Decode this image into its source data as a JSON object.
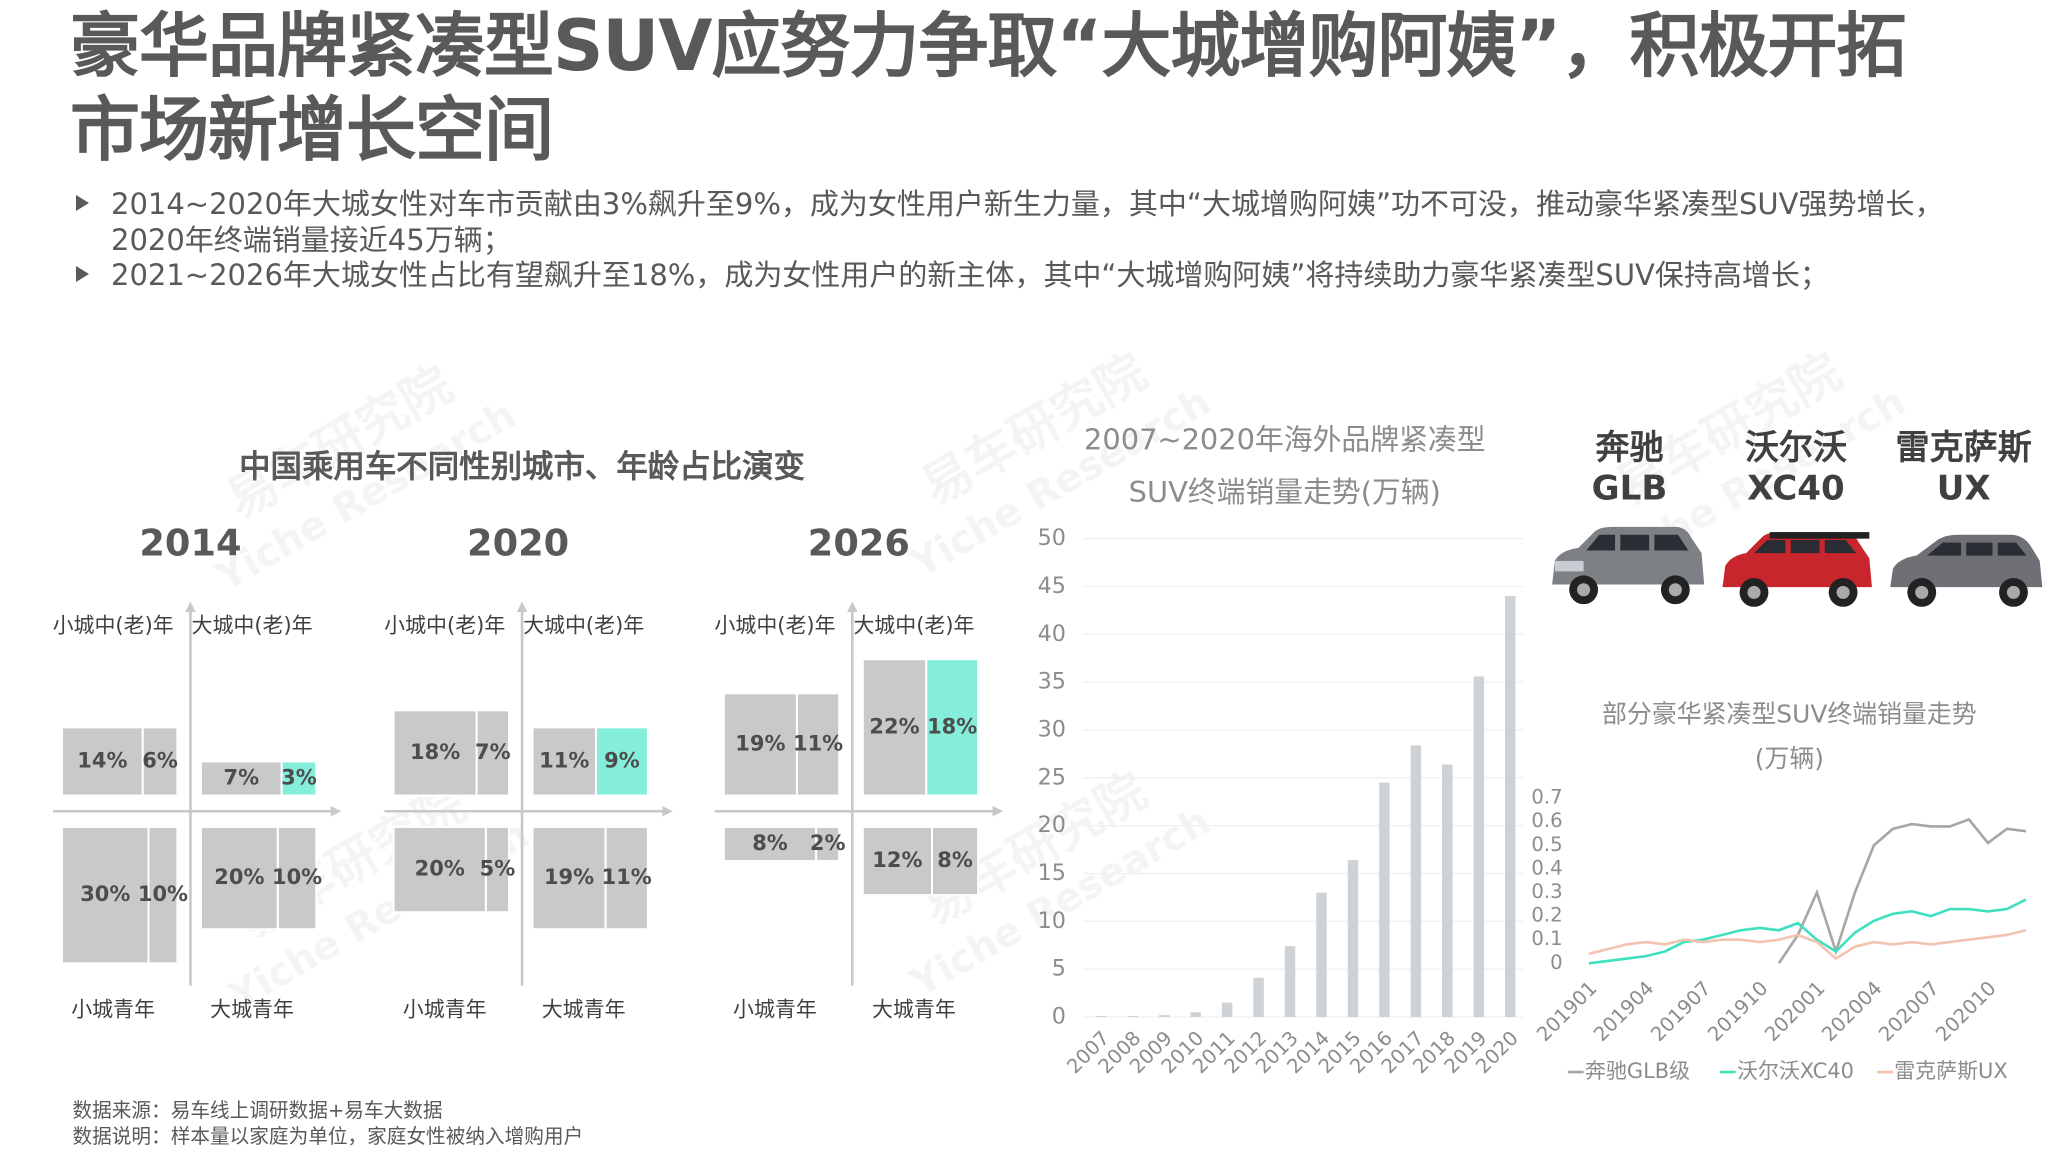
{
  "title": "豪华品牌紧凑型SUV应努力争取“大城增购阿姨”，积极开拓市场新增长空间",
  "bullets": [
    "2014~2020年大城女性对车市贡献由3%飙升至9%，成为女性用户新生力量，其中“大城增购阿姨”功不可没，推动豪华紧凑型SUV强势增长，2020年终端销量接近45万辆；",
    "2021~2026年大城女性占比有望飙升至18%，成为女性用户的新主体，其中“大城增购阿姨”将持续助力豪华紧凑型SUV保持高增长；"
  ],
  "watermark": {
    "cn": "易车研究院",
    "en": "Yiche Research"
  },
  "cars": [
    {
      "brand": "奔驰",
      "model": "GLB"
    },
    {
      "brand": "沃尔沃",
      "model": "XC40"
    },
    {
      "brand": "雷克萨斯",
      "model": "UX"
    }
  ],
  "notes": [
    "数据来源：易车线上调研数据+易车大数据",
    "数据说明：样本量以家庭为单位，家庭女性被纳入增购用户"
  ],
  "chart_data": [
    {
      "type": "quadrant",
      "title": "中国乘用车不同性别城市、年龄占比演变",
      "panels": [
        {
          "label": "2014",
          "quadrants": [
            {
              "name": "小城中(老)年",
              "values": [
                14,
                6
              ],
              "value_labels": [
                "14%",
                "6%"
              ],
              "colors": [
                "#c9c9c9",
                "#c9c9c9"
              ]
            },
            {
              "name": "大城中(老)年",
              "values": [
                7,
                3
              ],
              "value_labels": [
                "7%",
                "3%"
              ],
              "colors": [
                "#c9c9c9",
                "#84eedb"
              ]
            },
            {
              "name": "小城青年",
              "values": [
                30,
                10
              ],
              "value_labels": [
                "30%",
                "10%"
              ],
              "colors": [
                "#c9c9c9",
                "#c9c9c9"
              ]
            },
            {
              "name": "大城青年",
              "values": [
                20,
                10
              ],
              "value_labels": [
                "20%",
                "10%"
              ],
              "colors": [
                "#c9c9c9",
                "#c9c9c9"
              ]
            }
          ]
        },
        {
          "label": "2020",
          "quadrants": [
            {
              "name": "小城中(老)年",
              "values": [
                18,
                7
              ],
              "value_labels": [
                "18%",
                "7%"
              ],
              "colors": [
                "#c9c9c9",
                "#c9c9c9"
              ]
            },
            {
              "name": "大城中(老)年",
              "values": [
                11,
                9
              ],
              "value_labels": [
                "11%",
                "9%"
              ],
              "colors": [
                "#c9c9c9",
                "#84eedb"
              ]
            },
            {
              "name": "小城青年",
              "values": [
                20,
                5
              ],
              "value_labels": [
                "20%",
                "5%"
              ],
              "colors": [
                "#c9c9c9",
                "#c9c9c9"
              ]
            },
            {
              "name": "大城青年",
              "values": [
                19,
                11
              ],
              "value_labels": [
                "19%",
                "11%"
              ],
              "colors": [
                "#c9c9c9",
                "#c9c9c9"
              ]
            }
          ]
        },
        {
          "label": "2026",
          "quadrants": [
            {
              "name": "小城中(老)年",
              "values": [
                19,
                11
              ],
              "value_labels": [
                "19%",
                "11%"
              ],
              "colors": [
                "#c9c9c9",
                "#c9c9c9"
              ]
            },
            {
              "name": "大城中(老)年",
              "values": [
                22,
                18
              ],
              "value_labels": [
                "22%",
                "18%"
              ],
              "colors": [
                "#c9c9c9",
                "#84eedb"
              ]
            },
            {
              "name": "小城青年",
              "values": [
                8,
                2
              ],
              "value_labels": [
                "8%",
                "2%"
              ],
              "colors": [
                "#c9c9c9",
                "#c9c9c9"
              ]
            },
            {
              "name": "大城青年",
              "values": [
                12,
                8
              ],
              "value_labels": [
                "12%",
                "8%"
              ],
              "colors": [
                "#c9c9c9",
                "#c9c9c9"
              ]
            }
          ]
        }
      ]
    },
    {
      "type": "bar",
      "title": [
        "2007~2020年海外品牌紧凑型",
        "SUV终端销量走势(万辆)"
      ],
      "categories": [
        "2007",
        "2008",
        "2009",
        "2010",
        "2011",
        "2012",
        "2013",
        "2014",
        "2015",
        "2016",
        "2017",
        "2018",
        "2019",
        "2020"
      ],
      "values": [
        0.1,
        0.1,
        0.2,
        0.5,
        1.5,
        4.1,
        7.4,
        13.0,
        16.4,
        24.5,
        28.4,
        26.4,
        35.6,
        44.0
      ],
      "color": "#cfd2d5",
      "ylim": [
        0,
        50
      ],
      "yticks": [
        0,
        5,
        10,
        15,
        20,
        25,
        30,
        35,
        40,
        45,
        50
      ],
      "grid": true
    },
    {
      "type": "line",
      "title": [
        "部分豪华紧凑型SUV终端销量走势",
        "(万辆)"
      ],
      "categories": [
        "201901",
        null,
        null,
        "201904",
        null,
        null,
        "201907",
        null,
        null,
        "201910",
        null,
        null,
        "202001",
        null,
        null,
        "202004",
        null,
        null,
        "202007",
        null,
        null,
        "202010",
        null,
        null
      ],
      "series": [
        {
          "name": "奔驰GLB级",
          "color": "#a6a6a6",
          "values": [
            null,
            null,
            null,
            null,
            null,
            null,
            null,
            null,
            null,
            null,
            0.0,
            0.12,
            0.3,
            0.05,
            0.3,
            0.5,
            0.57,
            0.59,
            0.58,
            0.58,
            0.61,
            0.51,
            0.57,
            0.56
          ]
        },
        {
          "name": "沃尔沃XC40",
          "color": "#3ee0c0",
          "values": [
            0.0,
            0.01,
            0.02,
            0.03,
            0.05,
            0.09,
            0.1,
            0.12,
            0.14,
            0.15,
            0.14,
            0.17,
            0.1,
            0.05,
            0.13,
            0.18,
            0.21,
            0.22,
            0.2,
            0.23,
            0.23,
            0.22,
            0.23,
            0.27
          ]
        },
        {
          "name": "雷克萨斯UX",
          "color": "#f4c2b0",
          "values": [
            0.04,
            0.06,
            0.08,
            0.09,
            0.08,
            0.1,
            0.09,
            0.1,
            0.1,
            0.09,
            0.1,
            0.12,
            0.09,
            0.02,
            0.07,
            0.09,
            0.08,
            0.09,
            0.08,
            0.09,
            0.1,
            0.11,
            0.12,
            0.14
          ]
        }
      ],
      "ylim": [
        0,
        0.7
      ],
      "yticks": [
        0,
        0.1,
        0.2,
        0.3,
        0.4,
        0.5,
        0.6,
        0.7
      ],
      "grid": false,
      "legend": "bottom"
    }
  ]
}
